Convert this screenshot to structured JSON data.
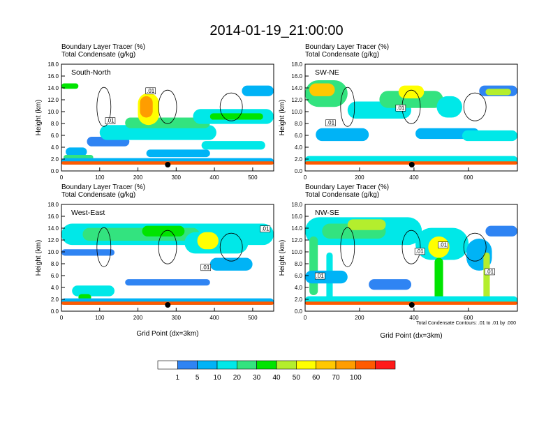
{
  "figure": {
    "title": "2014-01-19_21:00:00",
    "x_axis_label": "Grid Point (dx=3km)",
    "contour_note": "Total Condensate Contours: .01 to .01 by .000"
  },
  "colorbar": {
    "labels": [
      "1",
      "5",
      "10",
      "20",
      "30",
      "40",
      "50",
      "60",
      "70",
      "100"
    ],
    "colors": [
      "#ffffff",
      "#2f84f3",
      "#00b3f6",
      "#00e8e8",
      "#33e37f",
      "#00e400",
      "#b4ee2d",
      "#ffff00",
      "#ffc800",
      "#ff9d00",
      "#ff5a00",
      "#ff1a1a"
    ]
  },
  "chart_data": [
    {
      "type": "heatmap",
      "panel_label": "South-North",
      "header_line1": "Boundary Layer Tracer   (%)",
      "header_line2": "Total Condensate   (g/kg)",
      "ylabel": "Height (km)",
      "xlim": [
        0,
        555
      ],
      "ylim": [
        0,
        18
      ],
      "xticks": [
        0,
        100,
        200,
        300,
        400,
        500
      ],
      "yticks": [
        "0.0",
        "2.0",
        "4.0",
        "6.0",
        "8.0",
        "10.0",
        "12.0",
        "14.0",
        "16.0",
        "18.0"
      ],
      "contour_labels": [
        ".01",
        ".01"
      ],
      "marker_x": 278
    },
    {
      "type": "heatmap",
      "panel_label": "SW-NE",
      "header_line1": "Boundary Layer Tracer   (%)",
      "header_line2": "Total Condensate   (g/kg)",
      "ylabel": "Height (km)",
      "xlim": [
        0,
        780
      ],
      "ylim": [
        0,
        18
      ],
      "xticks": [
        0,
        200,
        400,
        600
      ],
      "yticks": [
        "0.0",
        "2.0",
        "4.0",
        "6.0",
        "8.0",
        "10.0",
        "12.0",
        "14.0",
        "16.0",
        "18.0"
      ],
      "contour_labels": [
        ".01",
        ".01"
      ],
      "marker_x": 392
    },
    {
      "type": "heatmap",
      "panel_label": "West-East",
      "header_line1": "Boundary Layer Tracer   (%)",
      "header_line2": "Total Condensate   (g/kg)",
      "ylabel": "Height (km)",
      "xlim": [
        0,
        555
      ],
      "ylim": [
        0,
        18
      ],
      "xticks": [
        0,
        100,
        200,
        300,
        400,
        500
      ],
      "yticks": [
        "0.0",
        "2.0",
        "4.0",
        "6.0",
        "8.0",
        "10.0",
        "12.0",
        "14.0",
        "16.0",
        "18.0"
      ],
      "contour_labels": [
        ".01",
        ".01"
      ],
      "marker_x": 278
    },
    {
      "type": "heatmap",
      "panel_label": "NW-SE",
      "header_line1": "Boundary Layer Tracer   (%)",
      "header_line2": "Total Condensate   (g/kg)",
      "ylabel": "Height (km)",
      "xlim": [
        0,
        780
      ],
      "ylim": [
        0,
        18
      ],
      "xticks": [
        0,
        200,
        400,
        600
      ],
      "yticks": [
        "0.0",
        "2.0",
        "4.0",
        "6.0",
        "8.0",
        "10.0",
        "12.0",
        "14.0",
        "16.0",
        "18.0"
      ],
      "contour_labels": [
        ".01",
        ".01",
        ".01",
        ".01"
      ],
      "marker_x": 392
    }
  ]
}
